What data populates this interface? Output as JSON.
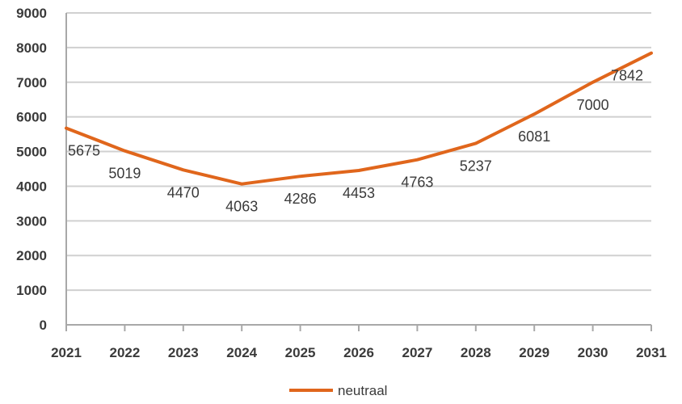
{
  "chart_data": {
    "type": "line",
    "x": [
      "2021",
      "2022",
      "2023",
      "2024",
      "2025",
      "2026",
      "2027",
      "2028",
      "2029",
      "2030",
      "2031"
    ],
    "series": [
      {
        "name": "neutraal",
        "color": "#e0661c",
        "values": [
          5675,
          5019,
          4470,
          4063,
          4286,
          4453,
          4763,
          5237,
          6081,
          7000,
          7842
        ]
      }
    ],
    "y_ticks": [
      "0",
      "1000",
      "2000",
      "3000",
      "4000",
      "5000",
      "6000",
      "7000",
      "8000",
      "9000"
    ],
    "ylim": [
      0,
      9000
    ],
    "grid": "horizontal",
    "grid_color": "#d0d0d0",
    "axis_color": "#a8a8a8",
    "legend_position": "bottom"
  }
}
